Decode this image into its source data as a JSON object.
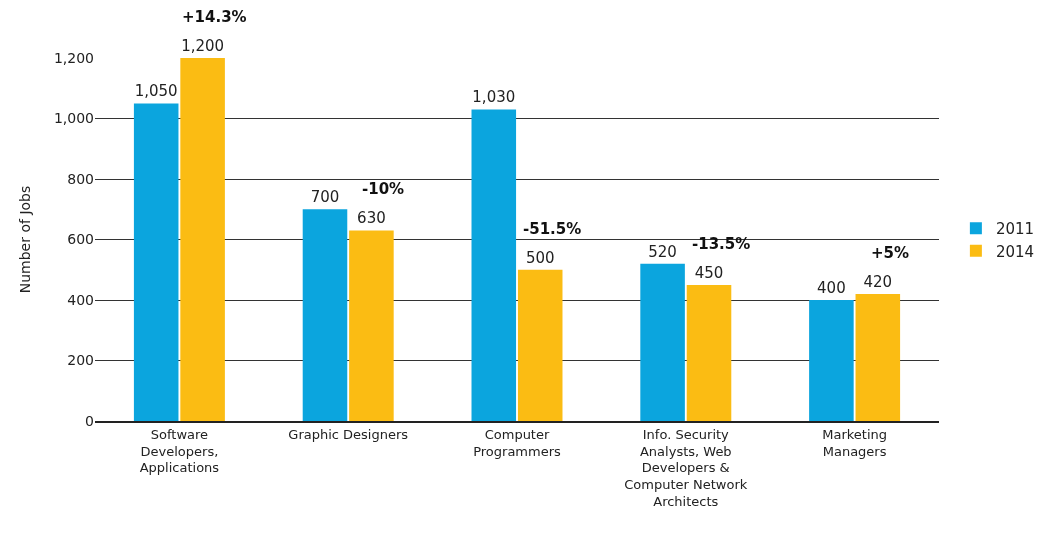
{
  "chart_data": {
    "type": "bar",
    "categories": [
      "Software Developers, Applications",
      "Graphic Designers",
      "Computer Programmers",
      "Info. Security Analysts, Web Developers & Computer Network Architects",
      "Marketing Managers"
    ],
    "series": [
      {
        "name": "2011",
        "color": "#0ba5de",
        "values": [
          1050,
          700,
          1030,
          520,
          400
        ],
        "value_labels": [
          "1,050",
          "700",
          "1,030",
          "520",
          "400"
        ]
      },
      {
        "name": "2014",
        "color": "#fbbc13",
        "values": [
          1200,
          630,
          500,
          450,
          420
        ],
        "value_labels": [
          "1,200",
          "630",
          "500",
          "450",
          "420"
        ]
      }
    ],
    "ylabel": "Number of Jobs",
    "ylim": [
      0,
      1200
    ],
    "yticks": [
      0,
      200,
      400,
      600,
      800,
      {
        "value": 1000,
        "label": "1,000"
      },
      {
        "value": 1200,
        "label": "1,200"
      }
    ],
    "annotations": [
      {
        "text": "+14.3%",
        "x": "Software Developers, Applications",
        "y": 1200
      },
      {
        "text": "-10%",
        "x": "Graphic Designers",
        "y": 630
      },
      {
        "text": "-51.5%",
        "x": "Computer Programmers",
        "y": 500
      },
      {
        "text": "-13.5%",
        "x": "Info. Security Analysts, Web Developers & Computer Network Architects",
        "y": 450
      },
      {
        "text": "+5%",
        "x": "Marketing Managers",
        "y": 420
      }
    ],
    "grid": "y",
    "legend": "right"
  }
}
